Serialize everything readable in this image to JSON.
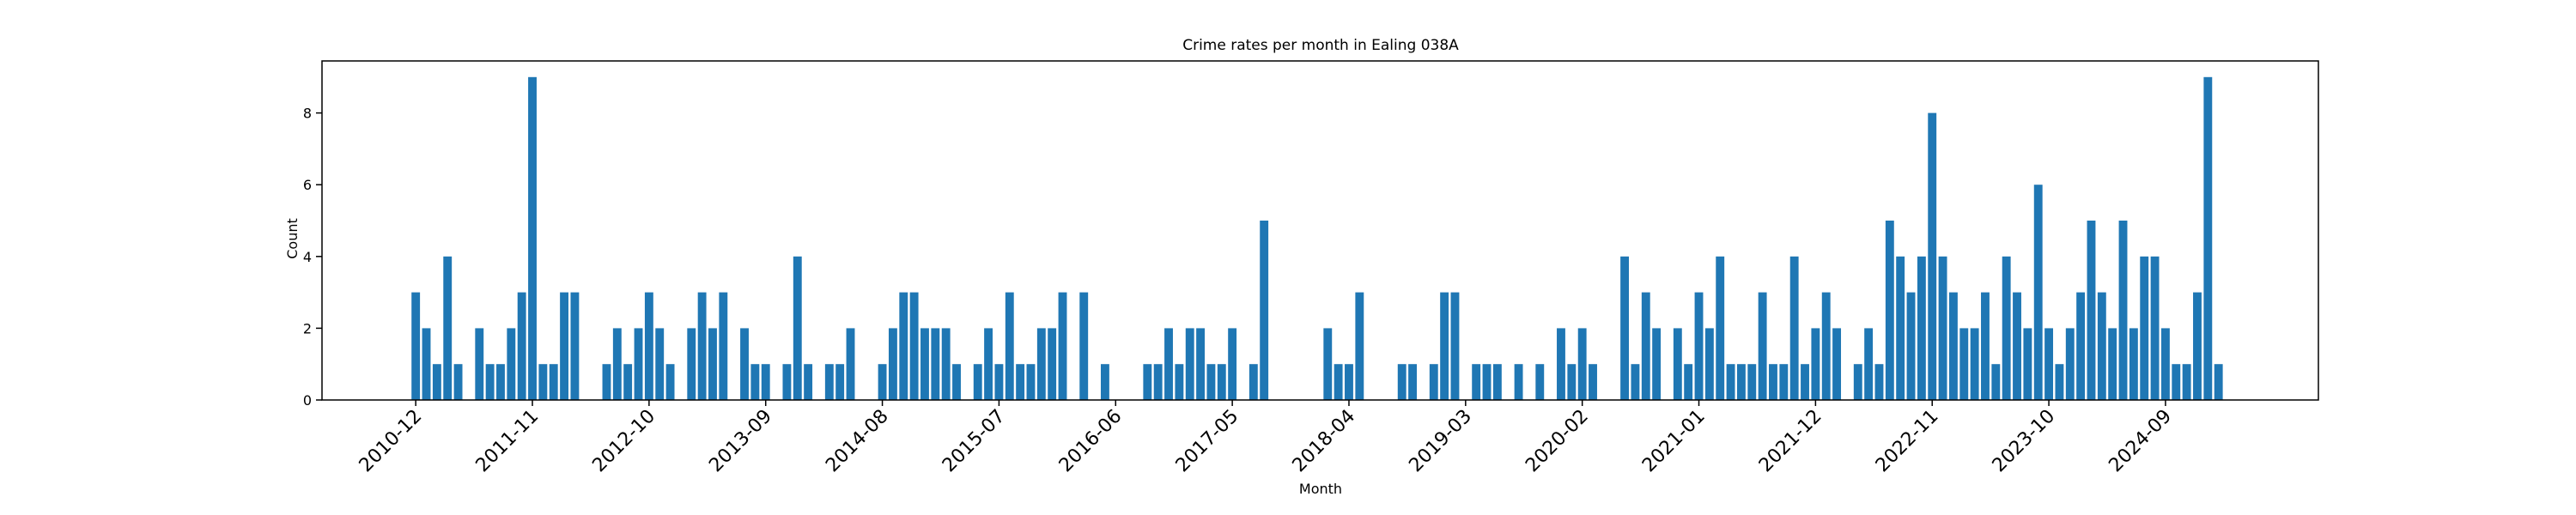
{
  "chart_data": {
    "type": "bar",
    "title": "Crime rates per month in Ealing 038A",
    "x_label": "Month",
    "y_label": "Count",
    "color": "#1f77b4",
    "categories": [
      "2010-12",
      null,
      null,
      null,
      null,
      null,
      null,
      null,
      null,
      null,
      null,
      "2011-11",
      null,
      null,
      null,
      null,
      null,
      null,
      null,
      null,
      null,
      null,
      "2012-10",
      null,
      null,
      null,
      null,
      null,
      null,
      null,
      null,
      null,
      null,
      "2013-09",
      null,
      null,
      null,
      null,
      null,
      null,
      null,
      null,
      null,
      null,
      "2014-08",
      null,
      null,
      null,
      null,
      null,
      null,
      null,
      null,
      null,
      null,
      "2015-07",
      null,
      null,
      null,
      null,
      null,
      null,
      null,
      null,
      null,
      null,
      "2016-06",
      null,
      null,
      null,
      null,
      null,
      null,
      null,
      null,
      null,
      null,
      "2017-05",
      null,
      null,
      null,
      null,
      null,
      null,
      null,
      null,
      null,
      null,
      "2018-04",
      null,
      null,
      null,
      null,
      null,
      null,
      null,
      null,
      null,
      null,
      "2019-03",
      null,
      null,
      null,
      null,
      null,
      null,
      null,
      null,
      null,
      null,
      "2020-02",
      null,
      null,
      null,
      null,
      null,
      null,
      null,
      null,
      null,
      null,
      "2021-01",
      null,
      null,
      null,
      null,
      null,
      null,
      null,
      null,
      null,
      null,
      "2021-12",
      null,
      null,
      null,
      null,
      null,
      null,
      null,
      null,
      null,
      null,
      "2022-11",
      null,
      null,
      null,
      null,
      null,
      null,
      null,
      null,
      null,
      null,
      "2023-10",
      null,
      null,
      null,
      null,
      null,
      null,
      null,
      null,
      null,
      null,
      "2024-09",
      null,
      null,
      null,
      null,
      null
    ],
    "values": [
      3,
      2,
      1,
      4,
      1,
      0,
      2,
      1,
      1,
      2,
      3,
      9,
      1,
      1,
      3,
      3,
      0,
      0,
      1,
      2,
      1,
      2,
      3,
      2,
      1,
      0,
      2,
      3,
      2,
      3,
      0,
      2,
      1,
      1,
      0,
      1,
      4,
      1,
      0,
      1,
      1,
      2,
      0,
      0,
      1,
      2,
      3,
      3,
      2,
      2,
      2,
      1,
      0,
      1,
      2,
      1,
      3,
      1,
      1,
      2,
      2,
      3,
      0,
      3,
      0,
      1,
      0,
      0,
      0,
      1,
      1,
      2,
      1,
      2,
      2,
      1,
      1,
      2,
      0,
      1,
      5,
      0,
      0,
      0,
      0,
      0,
      2,
      1,
      1,
      3,
      0,
      0,
      0,
      1,
      1,
      0,
      1,
      3,
      3,
      0,
      1,
      1,
      1,
      0,
      1,
      0,
      1,
      0,
      2,
      1,
      2,
      1,
      0,
      0,
      4,
      1,
      3,
      2,
      0,
      2,
      1,
      3,
      2,
      4,
      1,
      1,
      1,
      3,
      1,
      1,
      4,
      1,
      2,
      3,
      2,
      0,
      1,
      2,
      1,
      5,
      4,
      3,
      4,
      8,
      4,
      3,
      2,
      2,
      3,
      1,
      4,
      3,
      2,
      6,
      2,
      1,
      2,
      3,
      5,
      3,
      2,
      5,
      2,
      4,
      4,
      2,
      1,
      1,
      3,
      9,
      1
    ],
    "ylim": [
      0,
      9.45
    ],
    "yticks": [
      0,
      2,
      4,
      6,
      8
    ]
  }
}
